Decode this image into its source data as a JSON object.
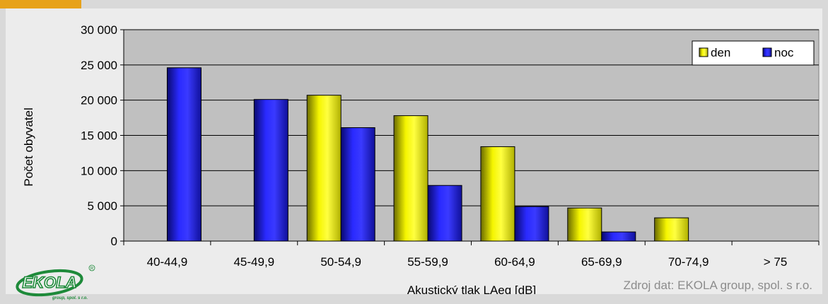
{
  "source_note": "Zdroj dat: EKOLA group, spol. s r.o.",
  "logo": {
    "name": "EKOLA",
    "tagline": "group, spol. s r.o.",
    "registered_mark": "R"
  },
  "colors": {
    "den": "#e8e800",
    "noc": "#1a1adc",
    "plot_bg": "#c0c0c0",
    "logo_green": "#1e8a3a"
  },
  "chart_data": {
    "type": "bar",
    "title": "",
    "xlabel": "Akustický tlak LAeq [dB]",
    "ylabel": "Počet obyvatel",
    "categories": [
      "40-44,9",
      "45-49,9",
      "50-54,9",
      "55-59,9",
      "60-64,9",
      "65-69,9",
      "70-74,9",
      "> 75"
    ],
    "series": [
      {
        "name": "den",
        "values": [
          0,
          0,
          20700,
          17800,
          13400,
          4700,
          3300,
          0
        ]
      },
      {
        "name": "noc",
        "values": [
          24600,
          20100,
          16100,
          7900,
          4900,
          1300,
          0,
          0
        ]
      }
    ],
    "ylim": [
      0,
      30000
    ],
    "yticks": [
      0,
      5000,
      10000,
      15000,
      20000,
      25000,
      30000
    ],
    "ytick_labels": [
      "0",
      "5 000",
      "10 000",
      "15 000",
      "20 000",
      "25 000",
      "30 000"
    ],
    "grid": true,
    "legend_position": "top-right"
  }
}
